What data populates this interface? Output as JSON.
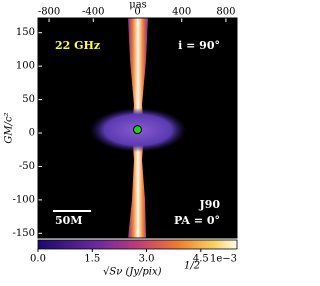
{
  "chart_data": {
    "type": "image",
    "x_label": "μas",
    "y_label": "GM/c²",
    "xlim": [
      -900,
      900
    ],
    "xticks": [
      -800,
      -400,
      0,
      400,
      800
    ],
    "ylim": [
      -157,
      172
    ],
    "yticks": [
      -150,
      -100,
      -50,
      0,
      50,
      100,
      150
    ],
    "annotations": [
      "22 GHz",
      "i = 90°",
      "J90",
      "PA = 0°",
      "50M"
    ],
    "marker": {
      "x": 0,
      "y": 5,
      "color": "#22cc22"
    },
    "colorbar": {
      "label": "√Sν (Jy/pix)",
      "label_power": "1/2",
      "offset_label": "1e−3",
      "lim": [
        0,
        5.5
      ],
      "ticks": [
        {
          "value": 0,
          "label": "0.0"
        },
        {
          "value": 1.5,
          "label": "1.5"
        },
        {
          "value": 3.0,
          "label": "3.0"
        },
        {
          "value": 4.5,
          "label": "4.5"
        }
      ]
    }
  }
}
